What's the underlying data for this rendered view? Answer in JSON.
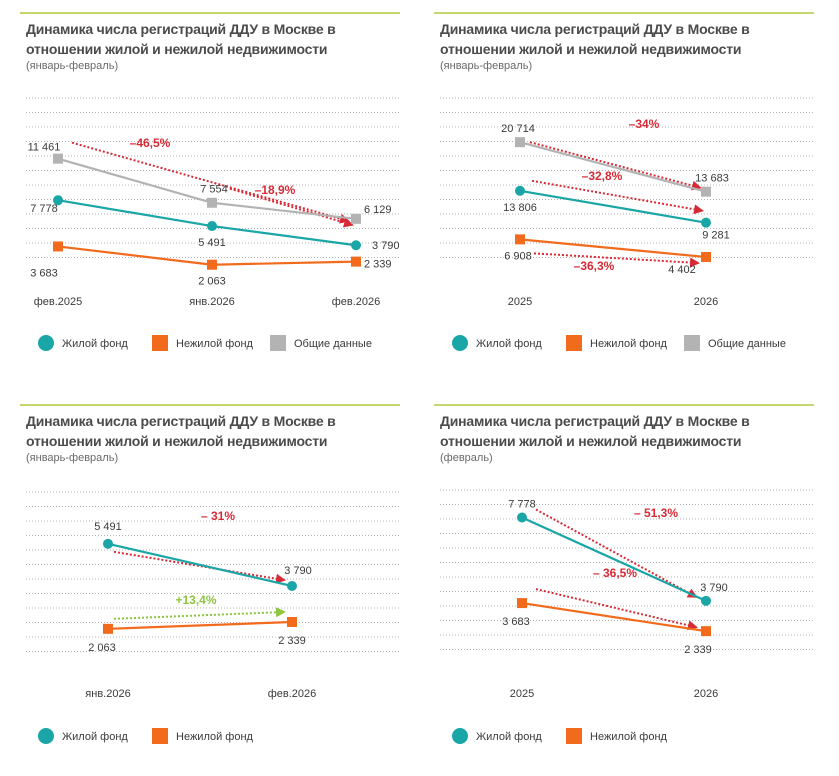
{
  "colors": {
    "residential": "#1aa6a6",
    "nonresidential": "#f26b1d",
    "total": "#b3b3b3",
    "decrease": "#d62b36",
    "increase": "#8cc63f",
    "grid": "#9a9a9a",
    "accent_line": "#c5d66c"
  },
  "legend_labels": {
    "residential": "Жилой  фонд",
    "nonresidential": "Нежилой  фонд",
    "total": "Общие данные"
  },
  "chart_data": [
    {
      "type": "line",
      "title": "Динамика числа регистраций ДДУ в Москве в отношении жилой и нежилой недвижимости",
      "subtitle": "(январь-февраль)",
      "categories": [
        "фев.2025",
        "янв.2026",
        "фев.2026"
      ],
      "series": [
        {
          "name": "Жилой  фонд",
          "key": "residential",
          "marker": "circle",
          "values": [
            7778,
            5491,
            3790
          ],
          "labels": [
            "7 778",
            "5 491",
            "3 790"
          ]
        },
        {
          "name": "Нежилой  фонд",
          "key": "nonresidential",
          "marker": "square",
          "values": [
            3683,
            2063,
            2339
          ],
          "labels": [
            "3 683",
            "2 063",
            "2 339"
          ]
        },
        {
          "name": "Общие данные",
          "key": "total",
          "marker": "square",
          "values": [
            11461,
            7554,
            6129
          ],
          "labels": [
            "11 461",
            "7 554",
            "6 129"
          ]
        }
      ],
      "ylim": [
        0,
        14000
      ],
      "grid": true,
      "legend": "bottom",
      "annotations": [
        {
          "text": "–46,5%",
          "from": [
            0,
            11461
          ],
          "to": [
            2,
            6129
          ],
          "kind": "decrease"
        },
        {
          "text": "–18,9%",
          "from": [
            1,
            7554
          ],
          "to": [
            2,
            6129
          ],
          "kind": "decrease"
        }
      ]
    },
    {
      "type": "line",
      "title": "Динамика числа регистраций ДДУ в Москве в отношении жилой и нежилой недвижимости",
      "subtitle": "(январь-февраль)",
      "categories": [
        "2025",
        "2026"
      ],
      "series": [
        {
          "name": "Жилой  фонд",
          "key": "residential",
          "marker": "circle",
          "values": [
            13806,
            9281
          ],
          "labels": [
            "13 806",
            "9 281"
          ]
        },
        {
          "name": "Нежилой  фонд",
          "key": "nonresidential",
          "marker": "square",
          "values": [
            6908,
            4402
          ],
          "labels": [
            "6 908",
            "4 402"
          ]
        },
        {
          "name": "Общие данные",
          "key": "total",
          "marker": "square",
          "values": [
            20714,
            13683
          ],
          "labels": [
            "20 714",
            "13 683"
          ]
        }
      ],
      "ylim": [
        0,
        25000
      ],
      "grid": true,
      "legend": "bottom",
      "annotations": [
        {
          "text": "–34%",
          "from": [
            0,
            20714
          ],
          "to": [
            1,
            13683
          ],
          "kind": "decrease"
        },
        {
          "text": "–32,8%",
          "from": [
            0,
            13806
          ],
          "to": [
            1,
            9281
          ],
          "kind": "decrease"
        },
        {
          "text": "–36,3%",
          "from": [
            0,
            6908
          ],
          "to": [
            1,
            4402
          ],
          "kind": "decrease"
        }
      ]
    },
    {
      "type": "line",
      "title": "Динамика числа регистраций ДДУ в Москве в отношении жилой и нежилой недвижимости",
      "subtitle": "(январь-февраль)",
      "categories": [
        "янв.2026",
        "фев.2026"
      ],
      "series": [
        {
          "name": "Жилой  фонд",
          "key": "residential",
          "marker": "circle",
          "values": [
            5491,
            3790
          ],
          "labels": [
            "5 491",
            "3 790"
          ]
        },
        {
          "name": "Нежилой  фонд",
          "key": "nonresidential",
          "marker": "square",
          "values": [
            2063,
            2339
          ],
          "labels": [
            "2 063",
            "2 339"
          ]
        }
      ],
      "ylim": [
        0,
        7500
      ],
      "grid": true,
      "legend": "bottom",
      "annotations": [
        {
          "text": "– 31%",
          "from": [
            0,
            5491
          ],
          "to": [
            1,
            3790
          ],
          "kind": "decrease"
        },
        {
          "text": "+13,4%",
          "from": [
            0,
            2063
          ],
          "to": [
            1,
            2339
          ],
          "kind": "increase"
        }
      ]
    },
    {
      "type": "line",
      "title": "Динамика числа регистраций ДДУ в Москве в отношении жилой и нежилой недвижимости",
      "subtitle": "(февраль)",
      "categories": [
        "2025",
        "2026"
      ],
      "series": [
        {
          "name": "Жилой  фонд",
          "key": "residential",
          "marker": "circle",
          "values": [
            7778,
            3790
          ],
          "labels": [
            "7 778",
            "3 790"
          ]
        },
        {
          "name": "Нежилой  фонд",
          "key": "nonresidential",
          "marker": "square",
          "values": [
            3683,
            2339
          ],
          "labels": [
            "3 683",
            "2 339"
          ]
        }
      ],
      "ylim": [
        0,
        9000
      ],
      "grid": true,
      "legend": "bottom",
      "annotations": [
        {
          "text": "– 51,3%",
          "from": [
            0,
            7778
          ],
          "to": [
            1,
            3790
          ],
          "kind": "decrease"
        },
        {
          "text": "– 36,5%",
          "from": [
            0,
            3683
          ],
          "to": [
            1,
            2339
          ],
          "kind": "decrease"
        }
      ]
    }
  ]
}
